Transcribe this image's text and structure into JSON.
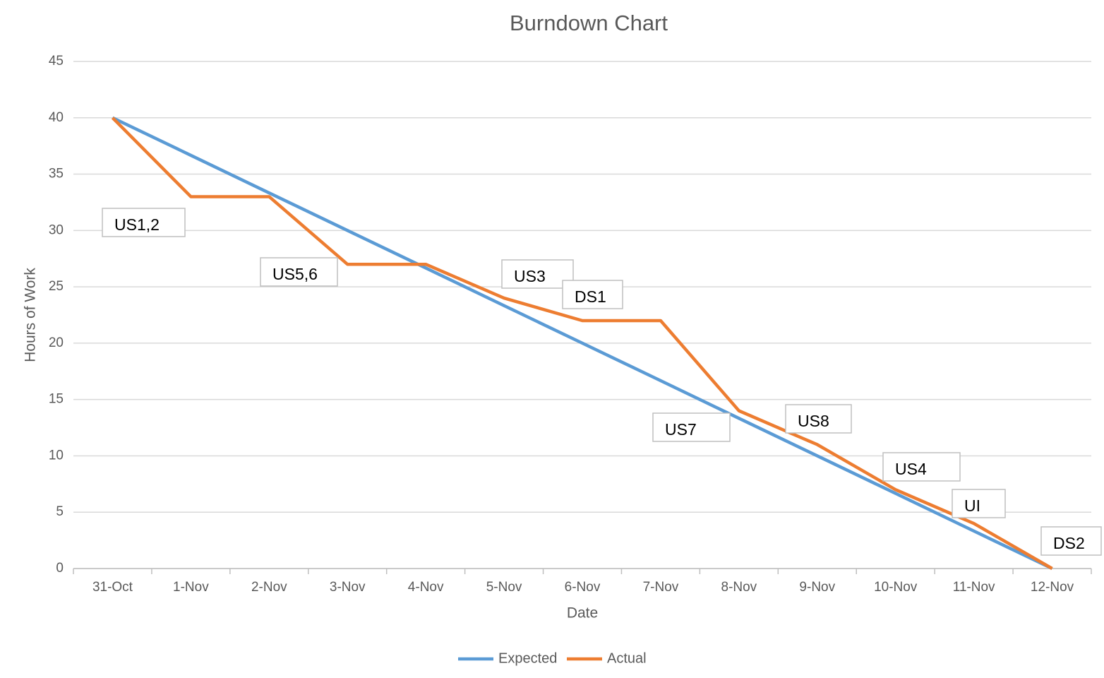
{
  "chart_data": {
    "type": "line",
    "title": "Burndown Chart",
    "x_label": "Date",
    "y_label": "Hours of Work",
    "categories": [
      "31-Oct",
      "1-Nov",
      "2-Nov",
      "3-Nov",
      "4-Nov",
      "5-Nov",
      "6-Nov",
      "7-Nov",
      "8-Nov",
      "9-Nov",
      "10-Nov",
      "11-Nov",
      "12-Nov"
    ],
    "series": [
      {
        "name": "Expected",
        "color": "#5b9bd5",
        "values": [
          40,
          36.67,
          33.33,
          30,
          26.67,
          23.33,
          20,
          16.67,
          13.33,
          10,
          6.67,
          3.33,
          0
        ]
      },
      {
        "name": "Actual",
        "color": "#ed7d31",
        "values": [
          40,
          33,
          33,
          27,
          27,
          24,
          22,
          22,
          14,
          11,
          7,
          4,
          0
        ]
      }
    ],
    "annotations": [
      "US1,2",
      "US5,6",
      "US3",
      "DS1",
      "US7",
      "US8",
      "US4",
      "UI",
      "DS2"
    ],
    "ylim": [
      0,
      45
    ],
    "yticks": [
      0,
      5,
      10,
      15,
      20,
      25,
      30,
      35,
      40,
      45
    ],
    "grid": true,
    "legend": "bottom"
  }
}
